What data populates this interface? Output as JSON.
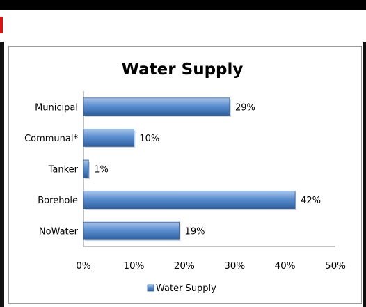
{
  "chart_data": {
    "type": "bar",
    "orientation": "horizontal",
    "title": "Water Supply",
    "categories": [
      "Municipal",
      "Communal*",
      "Tanker",
      "Borehole",
      "NoWater"
    ],
    "series": [
      {
        "name": "Water Supply",
        "values": [
          29,
          10,
          1,
          42,
          19
        ],
        "data_labels": [
          "29%",
          "10%",
          "1%",
          "42%",
          "19%"
        ],
        "color": "#4f81bd"
      }
    ],
    "xlim": [
      0,
      50
    ],
    "x_ticks": [
      "0%",
      "10%",
      "20%",
      "30%",
      "40%",
      "50%"
    ],
    "grid": false,
    "legend_position": "bottom"
  }
}
